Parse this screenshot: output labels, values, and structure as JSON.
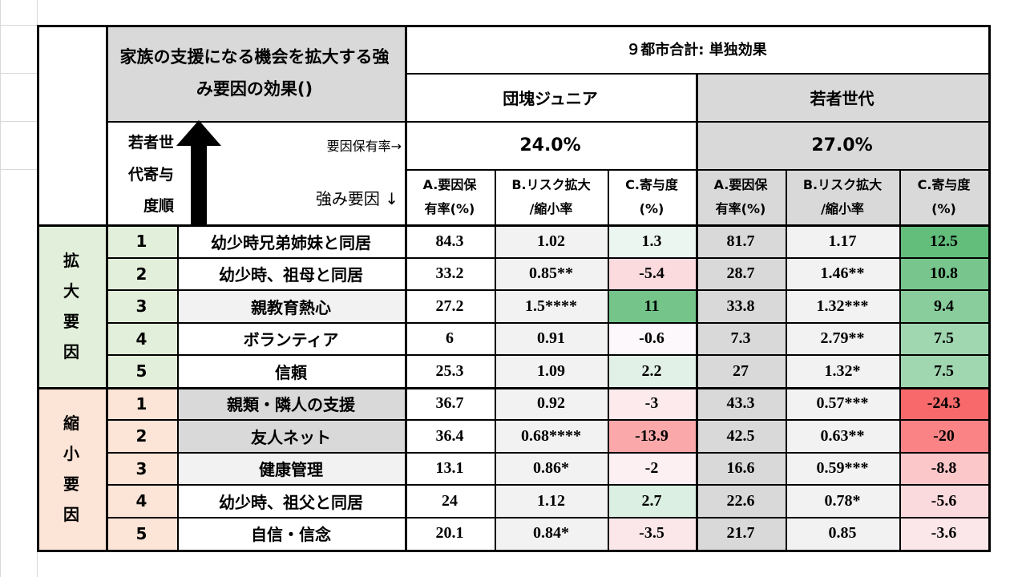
{
  "title": "家族の支援になる機会を拡大する強み要因の効果()",
  "overall_header": "９都市合計: 単独効果",
  "groups": [
    {
      "name": "団塊ジュニア",
      "prevalence": "24.0%"
    },
    {
      "name": "若者世代",
      "prevalence": "27.0%"
    }
  ],
  "order_label": "若者世代寄与度順",
  "prevalence_label": "要因保有率→",
  "factor_label": "強み要因 ↓",
  "col_headers": [
    {
      "line1": "A.要因保",
      "line2": "有率(%)"
    },
    {
      "line1": "B.リスク拡大",
      "line2": "/縮小率"
    },
    {
      "line1": "C.寄与度",
      "line2": "(%)"
    }
  ],
  "categories": [
    {
      "label": "拡大要因",
      "color": "#e2efda"
    },
    {
      "label": "縮小要因",
      "color": "#fce4d6"
    }
  ],
  "rows": [
    {
      "cat": 0,
      "rank": "1",
      "name": "幼少時兄弟姉妹と同居",
      "a1": "84.3",
      "b1": "1.02",
      "c1": "1.3",
      "a2": "81.7",
      "b2": "1.17",
      "c2": "12.5"
    },
    {
      "cat": 0,
      "rank": "2",
      "name": "幼少時、祖母と同居",
      "a1": "33.2",
      "b1": "0.85**",
      "c1": "-5.4",
      "a2": "28.7",
      "b2": "1.46**",
      "c2": "10.8"
    },
    {
      "cat": 0,
      "rank": "3",
      "name": "親教育熱心",
      "a1": "27.2",
      "b1": "1.5****",
      "c1": "11",
      "a2": "33.8",
      "b2": "1.32***",
      "c2": "9.4"
    },
    {
      "cat": 0,
      "rank": "4",
      "name": "ボランティア",
      "a1": "6",
      "b1": "0.91",
      "c1": "-0.6",
      "a2": "7.3",
      "b2": "2.79**",
      "c2": "7.5"
    },
    {
      "cat": 0,
      "rank": "5",
      "name": "信頼",
      "a1": "25.3",
      "b1": "1.09",
      "c1": "2.2",
      "a2": "27",
      "b2": "1.32*",
      "c2": "7.5"
    },
    {
      "cat": 1,
      "rank": "1",
      "name": "親類・隣人の支援",
      "a1": "36.7",
      "b1": "0.92",
      "c1": "-3",
      "a2": "43.3",
      "b2": "0.57***",
      "c2": "-24.3"
    },
    {
      "cat": 1,
      "rank": "2",
      "name": "友人ネット",
      "a1": "36.4",
      "b1": "0.68****",
      "c1": "-13.9",
      "a2": "42.5",
      "b2": "0.63**",
      "c2": "-20"
    },
    {
      "cat": 1,
      "rank": "3",
      "name": "健康管理",
      "a1": "13.1",
      "b1": "0.86*",
      "c1": "-2",
      "a2": "16.6",
      "b2": "0.59***",
      "c2": "-8.8"
    },
    {
      "cat": 1,
      "rank": "4",
      "name": "幼少時、祖父と同居",
      "a1": "24",
      "b1": "1.12",
      "c1": "2.7",
      "a2": "22.6",
      "b2": "0.78*",
      "c2": "-5.6"
    },
    {
      "cat": 1,
      "rank": "5",
      "name": "自信・信念",
      "a1": "20.1",
      "b1": "0.84*",
      "c1": "-3.5",
      "a2": "21.7",
      "b2": "0.85",
      "c2": "-3.6"
    }
  ],
  "colors": {
    "header_gray": "#d9d9d9",
    "light_gray": "#f2f2f2",
    "positive_strong": "#63be7b",
    "negative_strong": "#f8696b"
  }
}
